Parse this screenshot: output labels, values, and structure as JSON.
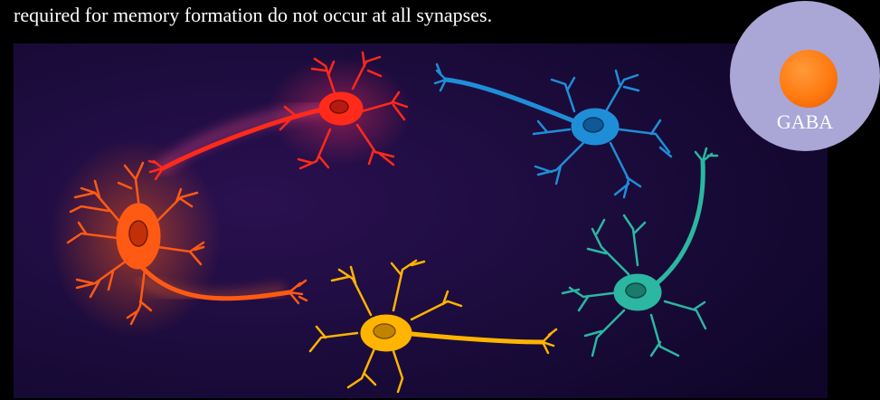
{
  "caption": "required for memory formation do not occur at all synapses.",
  "badge": {
    "label": "GABA",
    "icon": "gaba-molecule-icon"
  },
  "colors": {
    "background": "#000000",
    "panel": "#1a0b3a",
    "neuron_orange": "#ff5a14",
    "neuron_red": "#ff2a1a",
    "neuron_blue": "#1f8ed8",
    "neuron_teal": "#2bb7a1",
    "neuron_yellow": "#ffb400",
    "badge": "#aaa6d6",
    "gaba_ball": "#ff7a10"
  }
}
